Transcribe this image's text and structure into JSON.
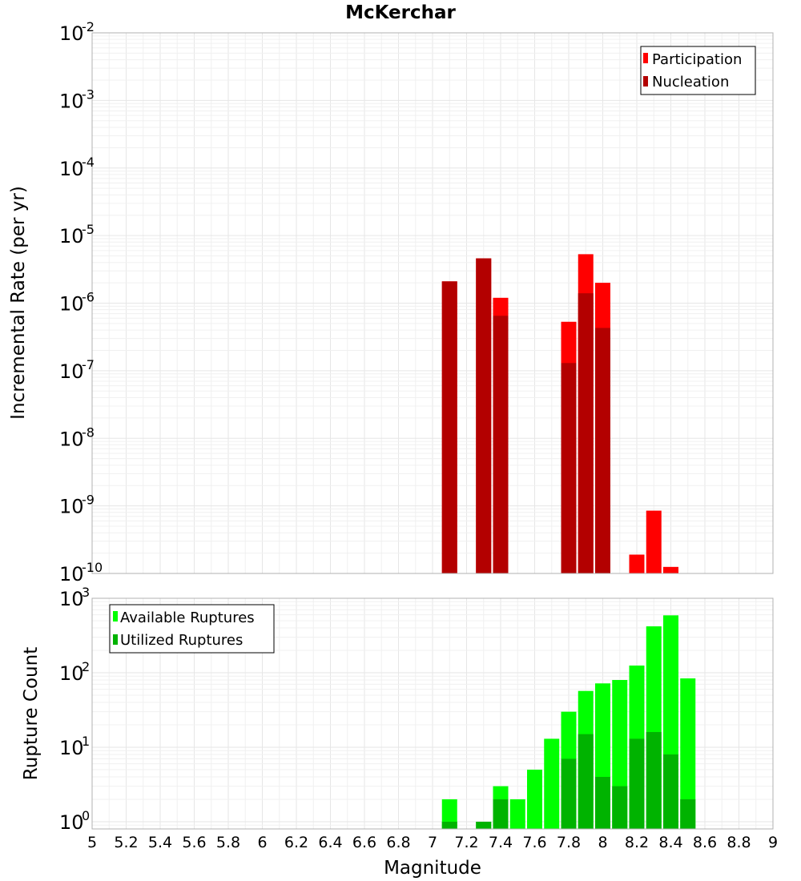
{
  "chart_data": [
    {
      "type": "bar",
      "title": "McKerchar",
      "xlabel": "",
      "ylabel": "Incremental Rate (per yr)",
      "yscale": "log",
      "ylim": [
        1e-10,
        0.01
      ],
      "xlim": [
        5,
        9
      ],
      "yticks": [
        {
          "base": "10",
          "exp": "-10"
        },
        {
          "base": "10",
          "exp": "-9"
        },
        {
          "base": "10",
          "exp": "-8"
        },
        {
          "base": "10",
          "exp": "-7"
        },
        {
          "base": "10",
          "exp": "-6"
        },
        {
          "base": "10",
          "exp": "-5"
        },
        {
          "base": "10",
          "exp": "-4"
        },
        {
          "base": "10",
          "exp": "-3"
        },
        {
          "base": "10",
          "exp": "-2"
        }
      ],
      "legend": {
        "position": "top-right"
      },
      "x": [
        7.1,
        7.3,
        7.4,
        7.8,
        7.9,
        8.0,
        8.2,
        8.3,
        8.4
      ],
      "series": [
        {
          "name": "Participation",
          "color": "#ff0000",
          "values": [
            2.1e-06,
            4.6e-06,
            1.2e-06,
            5.3e-07,
            5.3e-06,
            2e-06,
            1.9e-10,
            8.5e-10,
            1.25e-10
          ]
        },
        {
          "name": "Nucleation",
          "color": "#b30000",
          "values": [
            2.1e-06,
            4.6e-06,
            6.5e-07,
            1.3e-07,
            1.4e-06,
            4.3e-07,
            null,
            null,
            null
          ]
        }
      ]
    },
    {
      "type": "bar",
      "title": "",
      "xlabel": "Magnitude",
      "ylabel": "Rupture Count",
      "yscale": "log",
      "ylim": [
        0.8,
        1000
      ],
      "xlim": [
        5,
        9
      ],
      "yticks": [
        {
          "base": "10",
          "exp": "0"
        },
        {
          "base": "10",
          "exp": "1"
        },
        {
          "base": "10",
          "exp": "2"
        },
        {
          "base": "10",
          "exp": "3"
        }
      ],
      "xtick_labels": [
        "5",
        "5.2",
        "5.4",
        "5.6",
        "5.8",
        "6",
        "6.2",
        "6.4",
        "6.6",
        "6.8",
        "7",
        "7.2",
        "7.4",
        "7.6",
        "7.8",
        "8",
        "8.2",
        "8.4",
        "8.6",
        "8.8",
        "9"
      ],
      "legend": {
        "position": "top-left"
      },
      "x": [
        7.1,
        7.3,
        7.4,
        7.5,
        7.6,
        7.7,
        7.8,
        7.9,
        8.0,
        8.1,
        8.2,
        8.3,
        8.4,
        8.5
      ],
      "series": [
        {
          "name": "Available Ruptures",
          "color": "#00ff00",
          "values": [
            2,
            1,
            3,
            2,
            5,
            13,
            30,
            57,
            72,
            80,
            125,
            420,
            590,
            84
          ]
        },
        {
          "name": "Utilized Ruptures",
          "color": "#00b300",
          "values": [
            1,
            1,
            2,
            null,
            null,
            null,
            7,
            15,
            4,
            3,
            13,
            16,
            8,
            2
          ]
        }
      ]
    }
  ]
}
